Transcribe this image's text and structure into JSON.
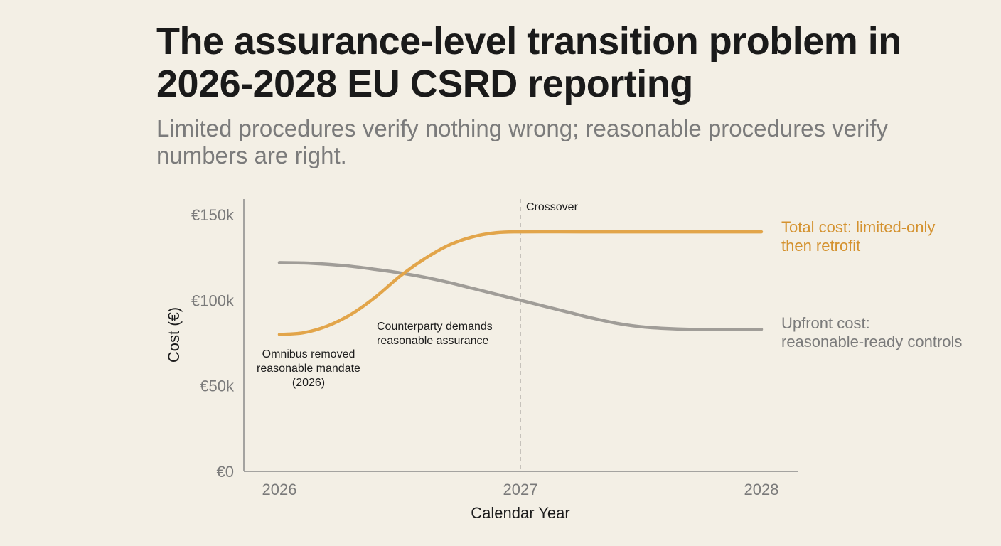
{
  "title": "The assurance-level transition problem in 2026-2028 EU CSRD reporting",
  "subtitle": "Limited procedures verify nothing wrong; reasonable procedures verify numbers are right.",
  "chart_data": {
    "type": "line",
    "xlabel": "Calendar Year",
    "ylabel": "Cost (€)",
    "x_ticks": [
      "2026",
      "2027",
      "2028"
    ],
    "y_ticks": [
      "€0",
      "€50k",
      "€100k",
      "€150k"
    ],
    "xlim": [
      2026,
      2028
    ],
    "ylim": [
      0,
      150000
    ],
    "grid": false,
    "colors": {
      "total": "#e2a54a",
      "upfront": "#a09d98"
    },
    "series": [
      {
        "key": "total",
        "name": "Total cost: limited-only then retrofit",
        "name_lines": [
          "Total cost: limited-only",
          "then retrofit"
        ],
        "x": [
          2026.0,
          2026.1,
          2026.2,
          2026.3,
          2026.4,
          2026.5,
          2026.6,
          2026.7,
          2026.8,
          2026.9,
          2027.0,
          2027.25,
          2027.5,
          2027.75,
          2028.0
        ],
        "y": [
          80000,
          81000,
          85000,
          92000,
          102000,
          114000,
          124000,
          132000,
          137000,
          139500,
          140000,
          140000,
          140000,
          140000,
          140000
        ]
      },
      {
        "key": "upfront",
        "name": "Upfront cost: reasonable-ready controls",
        "name_lines": [
          "Upfront cost:",
          "reasonable-ready controls"
        ],
        "x": [
          2026.0,
          2026.1,
          2026.2,
          2026.3,
          2026.4,
          2026.5,
          2026.6,
          2026.7,
          2026.8,
          2026.9,
          2027.0,
          2027.1,
          2027.2,
          2027.3,
          2027.4,
          2027.5,
          2027.6,
          2027.7,
          2027.8,
          2027.9,
          2028.0
        ],
        "y": [
          122000,
          121800,
          121000,
          119800,
          118000,
          116000,
          113500,
          110500,
          107000,
          103500,
          100000,
          96500,
          93000,
          89500,
          86500,
          84500,
          83500,
          83000,
          83000,
          83000,
          83000
        ]
      }
    ],
    "vline": {
      "x": 2027,
      "label": "Crossover"
    },
    "annotations": [
      {
        "key": "omnibus",
        "lines": [
          "Omnibus removed",
          "reasonable mandate",
          "(2026)"
        ]
      },
      {
        "key": "counterparty",
        "lines": [
          "Counterparty demands",
          "reasonable assurance"
        ]
      }
    ]
  }
}
